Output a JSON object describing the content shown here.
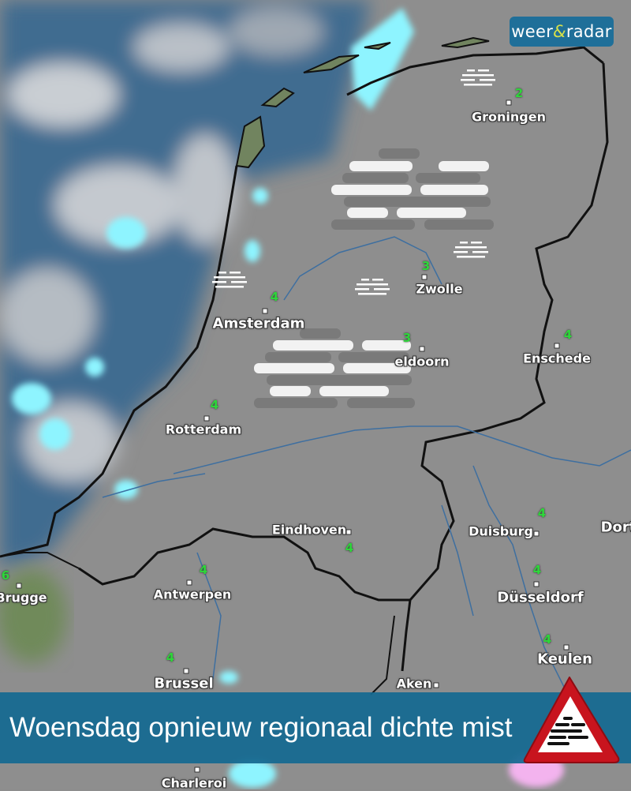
{
  "brand": {
    "logo_left": "weer",
    "logo_amp": "&",
    "logo_right": "radar"
  },
  "headline": "Woensdag opnieuw regionaal dichte mist",
  "cities": [
    "Groningen",
    "Zwolle",
    "Amsterdam",
    "eldoorn",
    "Enschede",
    "Rotterdam",
    "Eindhoven",
    "Duisburg",
    "Dort",
    "Brugge",
    "Antwerpen",
    "Düsseldorf",
    "Keulen",
    "Brussel",
    "Aken",
    "Charleroi"
  ],
  "temperatures": [
    "2",
    "3",
    "4",
    "3",
    "4",
    "4",
    "4",
    "4",
    "4",
    "4",
    "6",
    "4",
    "4"
  ],
  "icons": {
    "fog": "fog-icon",
    "warning": "fog-warning-triangle-icon"
  },
  "colors": {
    "banner": "#146991",
    "logo_bg": "#1f6f99",
    "temperature": "#2ed63a",
    "land": "#8d8d8d",
    "sea_cloud": "#3f6a8f",
    "precip": "#8ef4ff",
    "warning_red": "#c8141e"
  }
}
